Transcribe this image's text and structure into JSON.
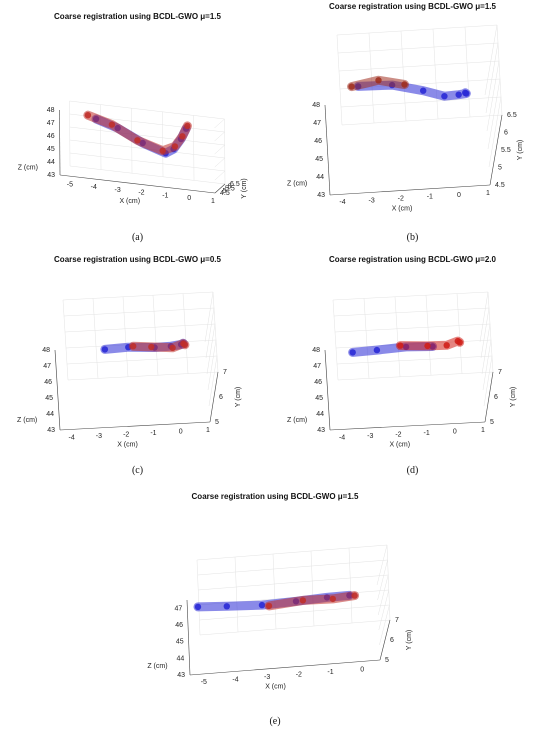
{
  "chart_data": [
    {
      "type": "scatter",
      "title": "Coarse registration using BCDL-GWO μ=1.5",
      "panel_label": "(a)",
      "xlabel": "X (cm)",
      "ylabel": "Y (cm)",
      "zlabel": "Z (cm)",
      "x_ticks": [
        "-5",
        "-4",
        "-3",
        "-2",
        "-1",
        "0",
        "1"
      ],
      "y_ticks": [
        "4.5",
        "5",
        "5.5",
        "6",
        "6.5"
      ],
      "z_ticks": [
        "48",
        "47",
        "46",
        "45",
        "44",
        "43"
      ],
      "series": [
        {
          "color": "#2a2ad6",
          "values": [
            [
              -0.3,
              5.0,
              47.5
            ],
            [
              -0.6,
              5.4,
              46.5
            ],
            [
              -1.0,
              5.8,
              45.5
            ],
            [
              -1.4,
              6.1,
              45.0
            ],
            [
              -2.4,
              6.3,
              45.5
            ],
            [
              -3.4,
              6.1,
              46.5
            ],
            [
              -4.2,
              5.6,
              47.2
            ]
          ]
        },
        {
          "color": "#c0302a",
          "values": [
            [
              -0.2,
              4.8,
              47.8
            ],
            [
              -0.5,
              5.2,
              46.8
            ],
            [
              -0.9,
              5.6,
              45.8
            ],
            [
              -1.5,
              6.0,
              45.2
            ],
            [
              -2.6,
              6.2,
              45.7
            ],
            [
              -3.6,
              5.9,
              46.8
            ],
            [
              -4.5,
              5.4,
              47.5
            ]
          ]
        }
      ]
    },
    {
      "type": "scatter",
      "title": "Coarse registration using BCDL-GWO μ=1.5",
      "panel_label": "(b)",
      "xlabel": "X (cm)",
      "ylabel": "Y (cm)",
      "zlabel": "Z (cm)",
      "x_ticks": [
        "-4",
        "-3",
        "-2",
        "-1",
        "0",
        "1"
      ],
      "y_ticks": [
        "4.5",
        "5",
        "5.5",
        "6",
        "6.5"
      ],
      "z_ticks": [
        "48",
        "47",
        "46",
        "45",
        "44",
        "43"
      ],
      "series": [
        {
          "color": "#2a2ad6",
          "values": [
            [
              0.3,
              4.6,
              48.0
            ],
            [
              0.2,
              5.1,
              47.0
            ],
            [
              -0.2,
              5.6,
              46.0
            ],
            [
              -0.8,
              6.0,
              45.2
            ],
            [
              -1.6,
              6.3,
              45.0
            ],
            [
              -2.6,
              6.1,
              45.8
            ],
            [
              -3.6,
              5.5,
              47.0
            ]
          ]
        },
        {
          "color": "#a03020",
          "values": [
            [
              -2.2,
              6.2,
              45.6
            ],
            [
              -3.0,
              5.9,
              46.5
            ],
            [
              -3.8,
              5.4,
              47.2
            ]
          ]
        }
      ]
    },
    {
      "type": "scatter",
      "title": "Coarse registration using BCDL-GWO μ=0.5",
      "panel_label": "(c)",
      "xlabel": "X (cm)",
      "ylabel": "Y (cm)",
      "zlabel": "Z (cm)",
      "x_ticks": [
        "-4",
        "-3",
        "-2",
        "-1",
        "0",
        "1"
      ],
      "y_ticks": [
        "5",
        "6",
        "7"
      ],
      "z_ticks": [
        "48",
        "47",
        "46",
        "45",
        "44",
        "43"
      ],
      "series": [
        {
          "color": "#2a2ad6",
          "values": [
            [
              0.2,
              5.0,
              48.0
            ],
            [
              0.0,
              5.6,
              47.0
            ],
            [
              -0.5,
              6.2,
              46.0
            ],
            [
              -1.2,
              6.7,
              45.2
            ],
            [
              -2.2,
              6.9,
              45.0
            ],
            [
              -3.0,
              6.6,
              45.4
            ]
          ]
        },
        {
          "color": "#c0302a",
          "values": [
            [
              0.3,
              4.8,
              48.2
            ],
            [
              0.1,
              5.5,
              47.2
            ],
            [
              -0.4,
              6.0,
              46.2
            ],
            [
              -1.3,
              6.6,
              45.4
            ],
            [
              -2.0,
              6.8,
              45.2
            ]
          ]
        }
      ]
    },
    {
      "type": "scatter",
      "title": "Coarse registration using BCDL-GWO μ=2.0",
      "panel_label": "(d)",
      "xlabel": "X (cm)",
      "ylabel": "Y (cm)",
      "zlabel": "Z (cm)",
      "x_ticks": [
        "-4",
        "-3",
        "-2",
        "-1",
        "0",
        "1"
      ],
      "y_ticks": [
        "5",
        "6",
        "7"
      ],
      "z_ticks": [
        "48",
        "47",
        "46",
        "45",
        "44",
        "43"
      ],
      "series": [
        {
          "color": "#2a2ad6",
          "values": [
            [
              -1.0,
              6.6,
              45.4
            ],
            [
              -2.0,
              6.9,
              45.0
            ],
            [
              -3.0,
              6.7,
              45.2
            ],
            [
              -3.8,
              6.4,
              45.6
            ]
          ]
        },
        {
          "color": "#d0201a",
          "values": [
            [
              0.3,
              4.9,
              48.2
            ],
            [
              0.1,
              5.6,
              47.2
            ],
            [
              -0.4,
              6.1,
              46.2
            ],
            [
              -1.2,
              6.7,
              45.3
            ],
            [
              -2.2,
              6.9,
              45.1
            ]
          ]
        }
      ]
    },
    {
      "type": "scatter",
      "title": "Coarse registration using BCDL-GWO μ=1.5",
      "panel_label": "(e)",
      "xlabel": "X (cm)",
      "ylabel": "Y (cm)",
      "zlabel": "Z (cm)",
      "x_ticks": [
        "-5",
        "-4",
        "-3",
        "-2",
        "-1",
        "0"
      ],
      "y_ticks": [
        "5",
        "6",
        "7"
      ],
      "z_ticks": [
        "47",
        "46",
        "45",
        "44",
        "43"
      ],
      "series": [
        {
          "color": "#2a2ad6",
          "values": [
            [
              -5.2,
              5.2,
              46.8
            ],
            [
              -4.4,
              5.8,
              46.0
            ],
            [
              -3.4,
              6.4,
              45.2
            ],
            [
              -2.4,
              6.8,
              44.8
            ],
            [
              -1.4,
              6.7,
              45.0
            ],
            [
              -0.6,
              6.2,
              45.6
            ]
          ]
        },
        {
          "color": "#c0302a",
          "values": [
            [
              -3.2,
              6.5,
              45.0
            ],
            [
              -2.2,
              6.9,
              44.7
            ],
            [
              -1.2,
              6.6,
              45.0
            ],
            [
              -0.4,
              6.0,
              45.8
            ]
          ]
        }
      ]
    }
  ]
}
